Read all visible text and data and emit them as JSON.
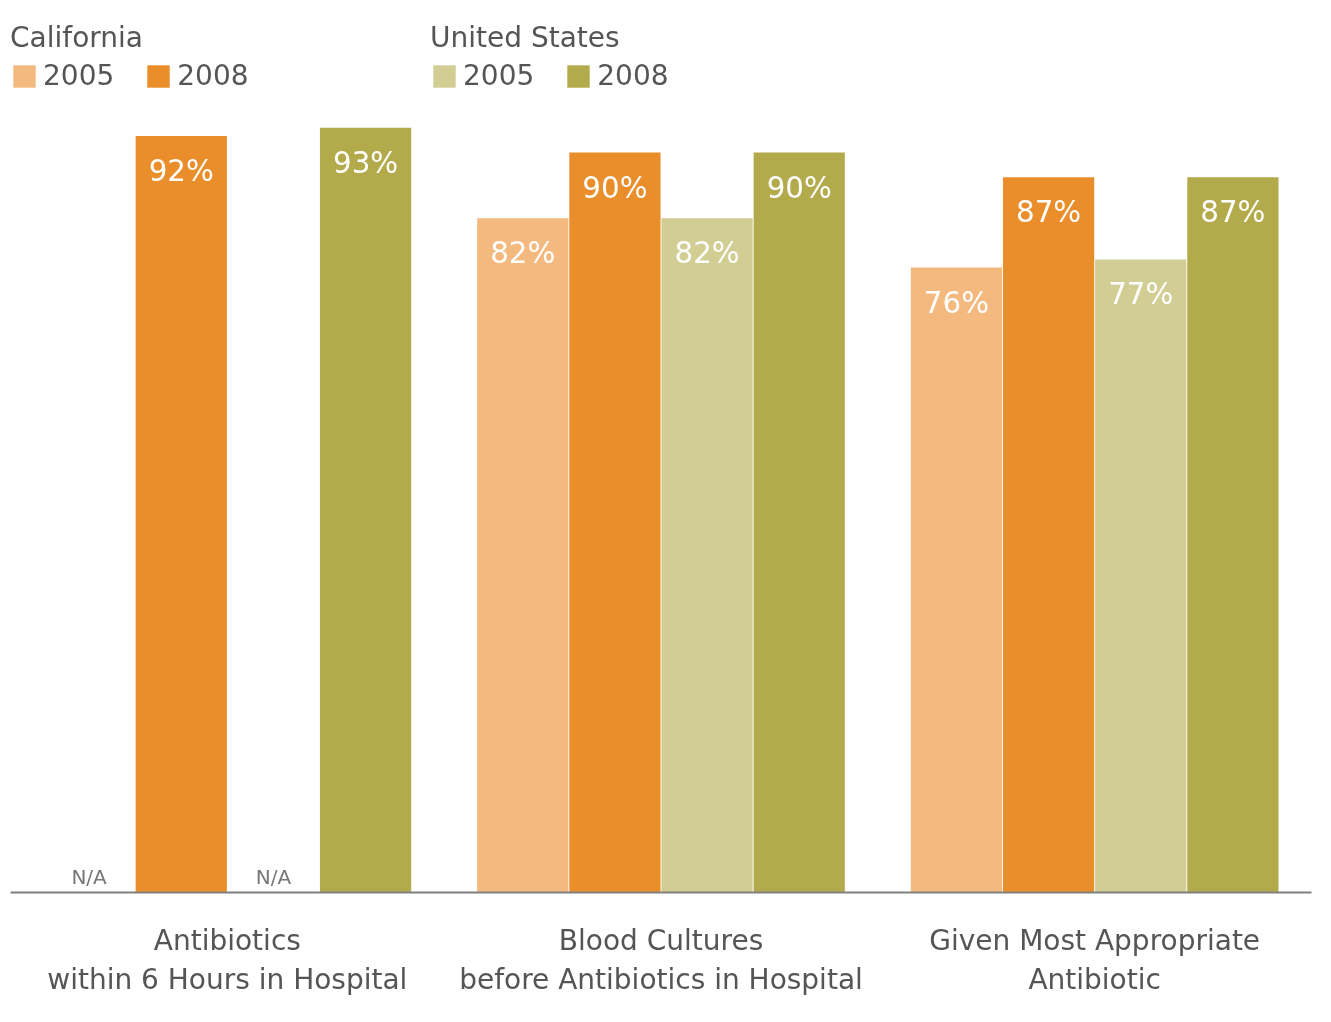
{
  "chart_data": {
    "type": "bar",
    "categories": [
      "Antibiotics\nwithin 6 Hours in Hospital",
      "Blood Cultures\nbefore Antibiotics in Hospital",
      "Given Most Appropriate\nAntibiotic"
    ],
    "series": [
      {
        "name": "2005",
        "color": "#f3b97f",
        "values": [
          null,
          82,
          76
        ],
        "value_labels": [
          "N/A",
          "82%",
          "76%"
        ]
      },
      {
        "name": "2008",
        "color": "#e98e2a",
        "values": [
          92,
          90,
          87
        ],
        "value_labels": [
          "92%",
          "90%",
          "87%"
        ]
      },
      {
        "name": "2005",
        "color": "#d2cd93",
        "values": [
          null,
          82,
          77
        ],
        "value_labels": [
          "N/A",
          "82%",
          "77%"
        ]
      },
      {
        "name": "2008",
        "color": "#b3aa4b",
        "values": [
          93,
          90,
          87
        ],
        "value_labels": [
          "93%",
          "90%",
          "87%"
        ]
      }
    ],
    "annotations": [
      "California",
      "United States"
    ],
    "legend": "top left",
    "grid": false
  }
}
